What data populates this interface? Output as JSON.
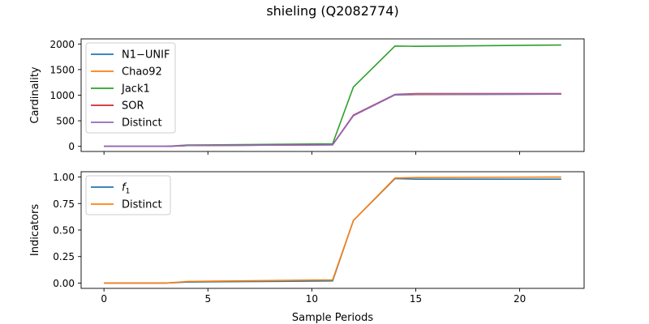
{
  "figure": {
    "title": "shieling (Q2082774)",
    "xlabel": "Sample Periods"
  },
  "chart_data": [
    {
      "type": "line",
      "ylabel": "Cardinality",
      "xlim": [
        -1.1,
        23.1
      ],
      "ylim": [
        -100,
        2100
      ],
      "xticks": [
        0,
        5,
        10,
        15,
        20
      ],
      "yticks": [
        0,
        500,
        1000,
        1500,
        2000
      ],
      "grid": false,
      "legend_position": "upper-left",
      "series": [
        {
          "name": "N1−UNIF",
          "color": "#1f77b4",
          "x": [
            0,
            3,
            4,
            11,
            12,
            14,
            15,
            22
          ],
          "y": [
            0,
            0,
            15,
            30,
            600,
            1005,
            1010,
            1020
          ]
        },
        {
          "name": "Chao92",
          "color": "#ff7f0e",
          "x": [
            0,
            3,
            4,
            11,
            12,
            14,
            15,
            22
          ],
          "y": [
            0,
            0,
            16,
            32,
            605,
            1010,
            1015,
            1025
          ]
        },
        {
          "name": "Jack1",
          "color": "#2ca02c",
          "x": [
            0,
            3,
            4,
            11,
            12,
            14,
            15,
            22
          ],
          "y": [
            0,
            0,
            25,
            50,
            1160,
            1960,
            1955,
            1980
          ]
        },
        {
          "name": "SOR",
          "color": "#d62728",
          "x": [
            0,
            3,
            4,
            11,
            12,
            14,
            15,
            22
          ],
          "y": [
            0,
            0,
            16,
            32,
            610,
            1015,
            1030,
            1030
          ]
        },
        {
          "name": "Distinct",
          "color": "#9467bd",
          "x": [
            0,
            3,
            4,
            11,
            12,
            14,
            15,
            22
          ],
          "y": [
            0,
            0,
            15,
            30,
            600,
            1010,
            1025,
            1025
          ]
        }
      ]
    },
    {
      "type": "line",
      "ylabel": "Indicators",
      "xlim": [
        -1.1,
        23.1
      ],
      "ylim": [
        -0.05,
        1.05
      ],
      "xticks": [
        0,
        5,
        10,
        15,
        20
      ],
      "yticks": [
        0.0,
        0.25,
        0.5,
        0.75,
        1.0
      ],
      "ytick_labels": [
        "0.00",
        "0.25",
        "0.50",
        "0.75",
        "1.00"
      ],
      "grid": false,
      "legend_position": "upper-left",
      "series": [
        {
          "name": "f",
          "subscript": "1",
          "color": "#1f77b4",
          "x": [
            0,
            3,
            4,
            11,
            12,
            14,
            15,
            22
          ],
          "y": [
            0,
            0,
            0.01,
            0.02,
            0.59,
            0.985,
            0.98,
            0.98
          ]
        },
        {
          "name": "Distinct",
          "color": "#ff7f0e",
          "x": [
            0,
            3,
            4,
            11,
            12,
            14,
            15,
            22
          ],
          "y": [
            0,
            0,
            0.015,
            0.03,
            0.59,
            0.99,
            0.995,
            1.0
          ]
        }
      ]
    }
  ]
}
